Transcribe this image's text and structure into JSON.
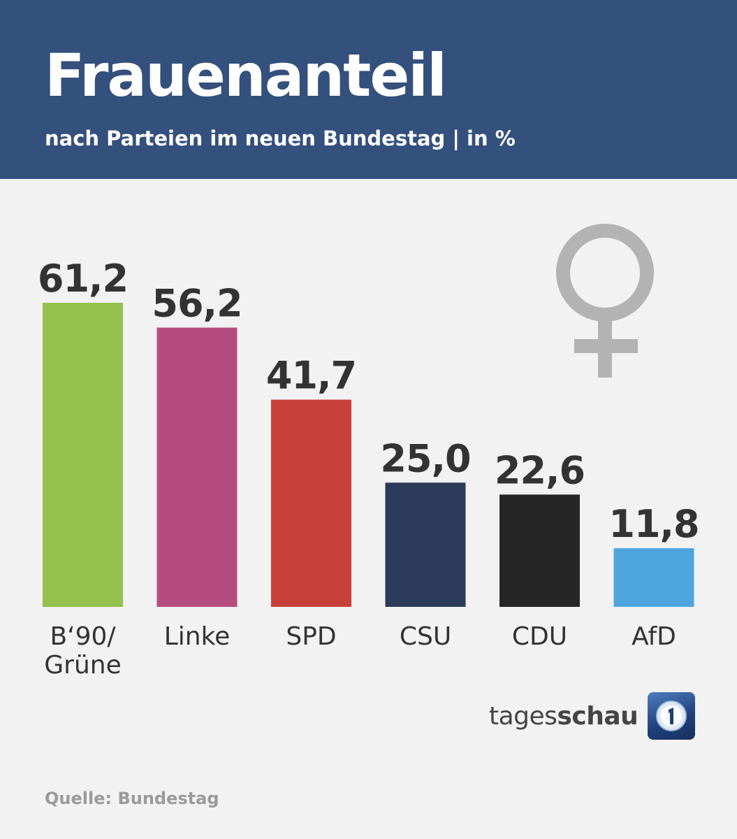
{
  "header": {
    "title": "Frauenanteil",
    "subtitle": "nach Parteien im neuen Bundestag | in %"
  },
  "chart_data": {
    "type": "bar",
    "title": "Frauenanteil",
    "subtitle": "nach Parteien im neuen Bundestag | in %",
    "categories": [
      [
        "B‘90/",
        "Grüne"
      ],
      [
        "Linke"
      ],
      [
        "SPD"
      ],
      [
        "CSU"
      ],
      [
        "CDU"
      ],
      [
        "AfD"
      ]
    ],
    "values": [
      61.2,
      56.2,
      41.7,
      25.0,
      22.6,
      11.8
    ],
    "value_labels": [
      "61,2",
      "56,2",
      "41,7",
      "25,0",
      "22,6",
      "11,8"
    ],
    "colors": [
      "#94c24c",
      "#b54c80",
      "#c8403a",
      "#2d3b5a",
      "#262626",
      "#4ea5de"
    ],
    "ylim": [
      0,
      61.2
    ],
    "xlabel": "",
    "ylabel": "",
    "grid": false
  },
  "icons": {
    "female_symbol_color": "#b3b3b3"
  },
  "logo": {
    "text_light": "tages",
    "text_bold": "schau"
  },
  "footer": {
    "source": "Quelle: Bundestag"
  }
}
